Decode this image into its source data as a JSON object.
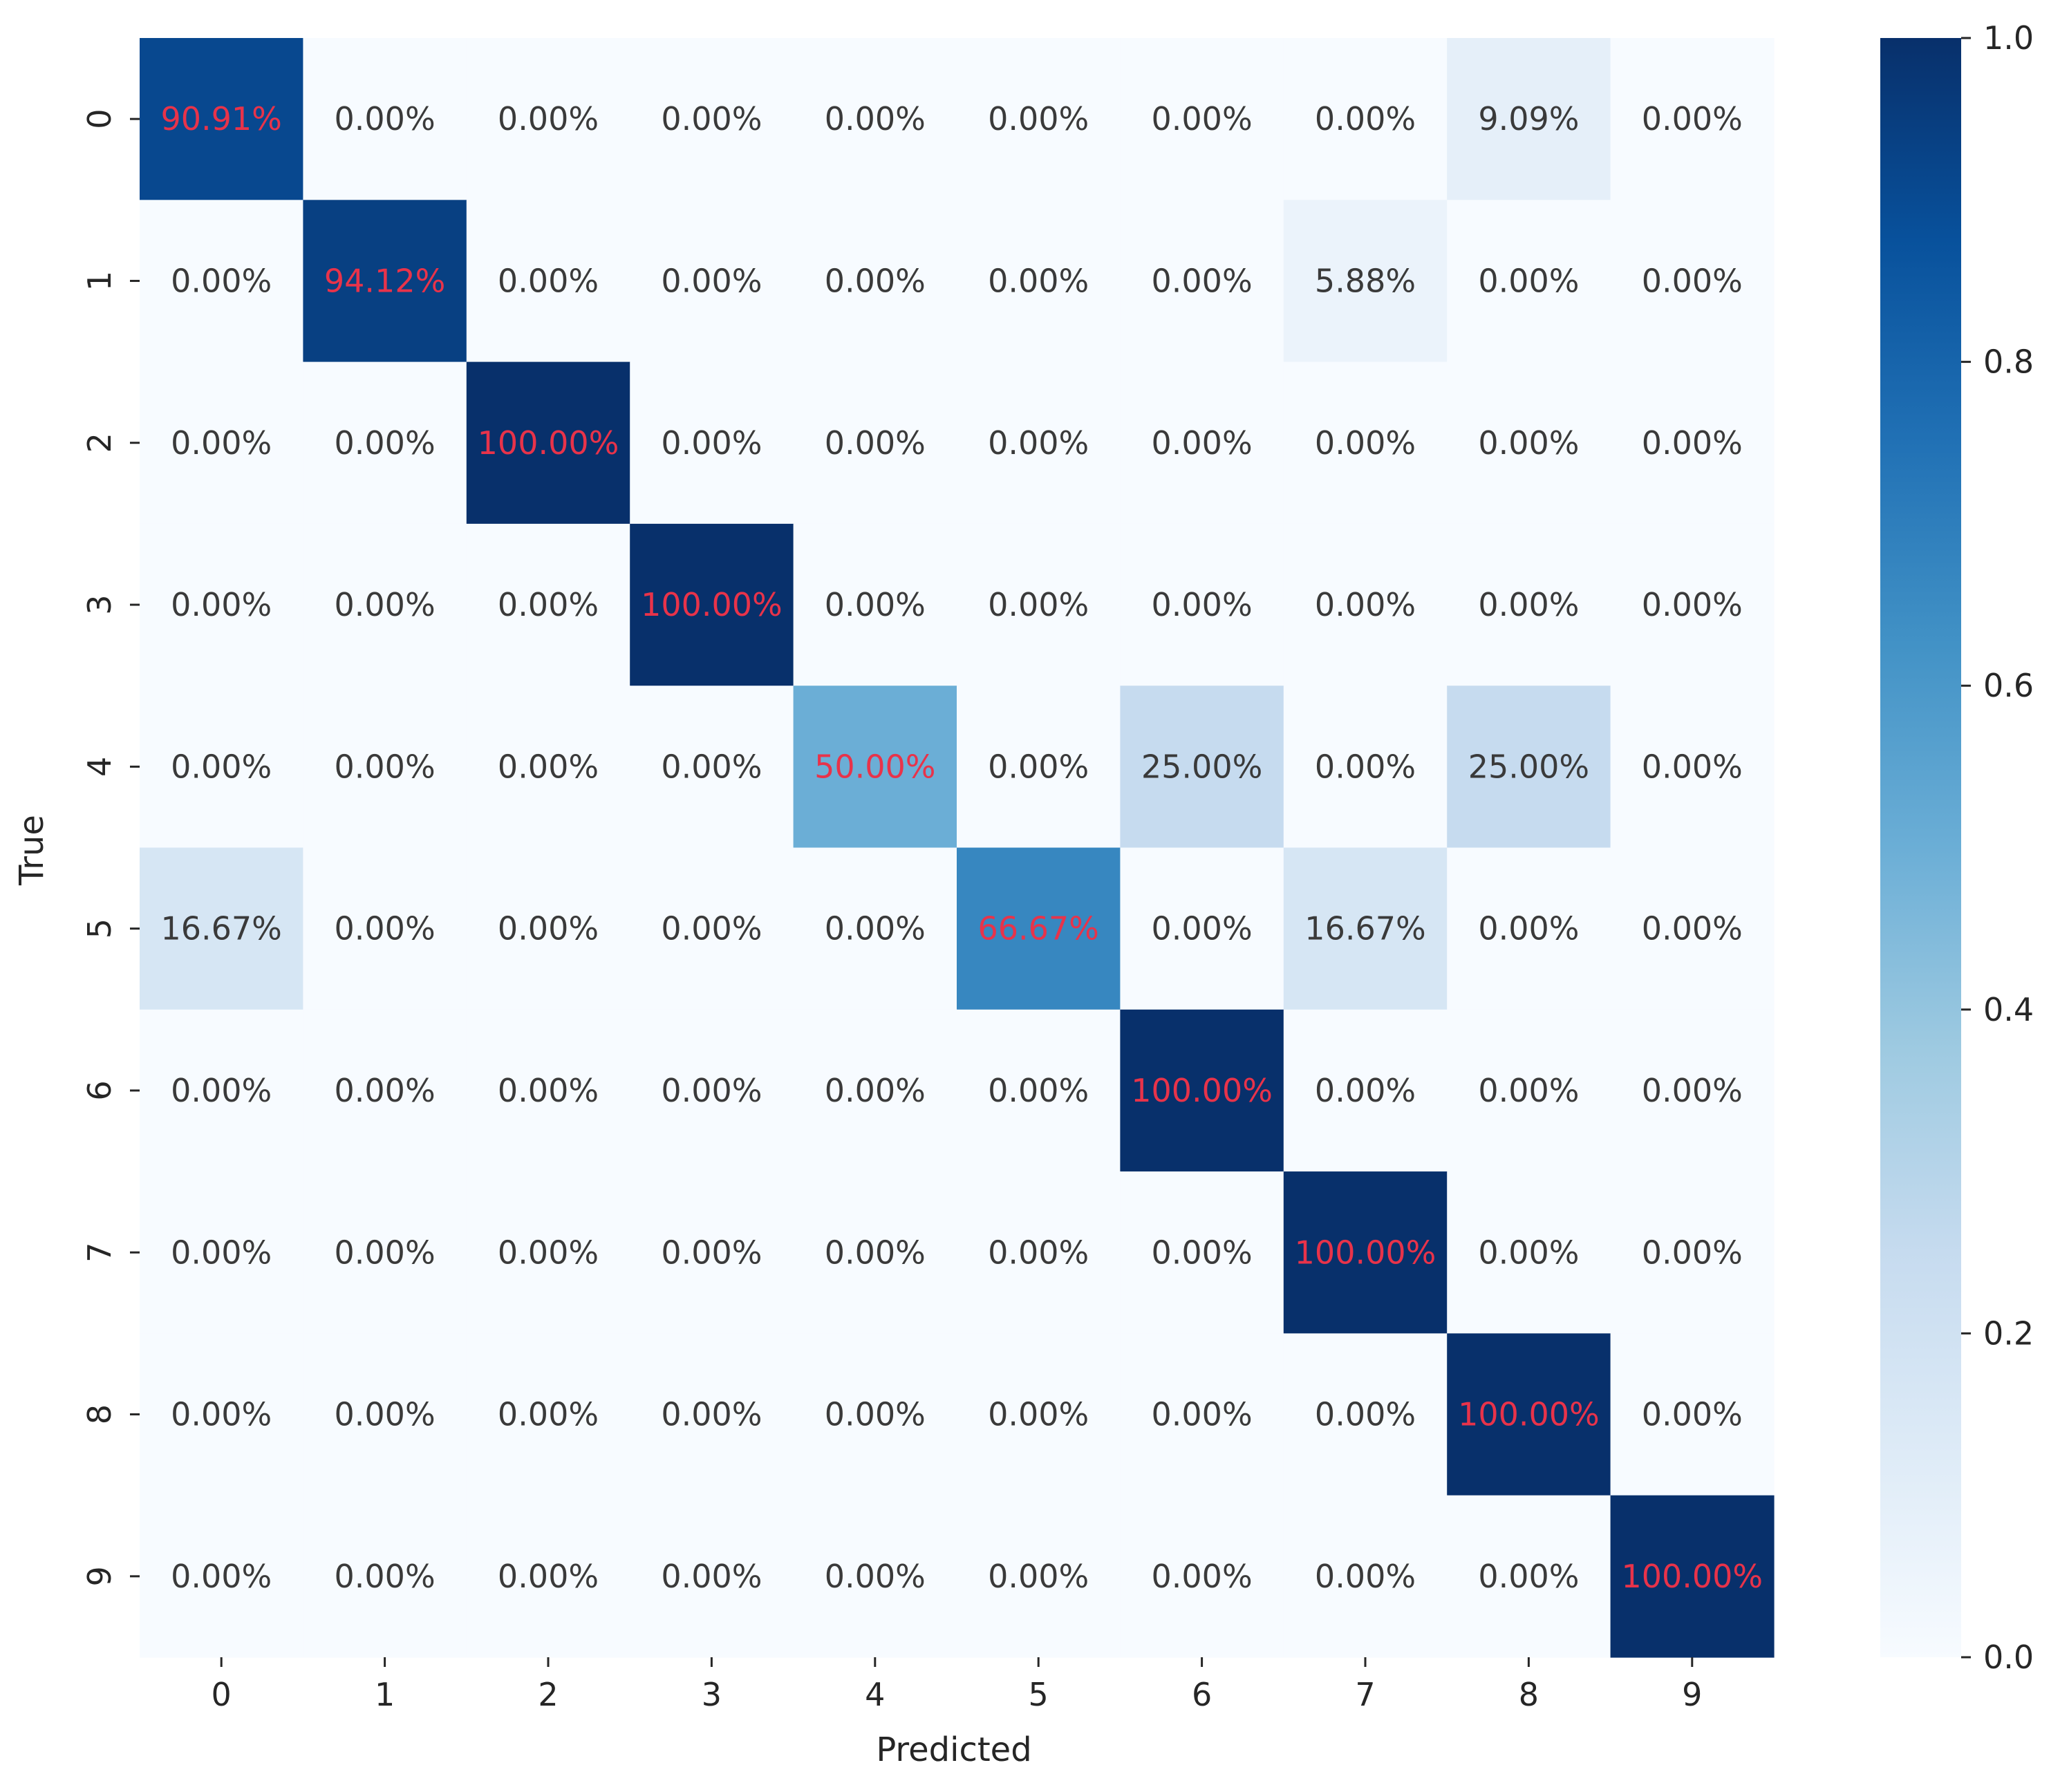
{
  "chart_data": {
    "type": "heatmap",
    "title": "",
    "xlabel": "Predicted",
    "ylabel": "True",
    "x_categories": [
      "0",
      "1",
      "2",
      "3",
      "4",
      "5",
      "6",
      "7",
      "8",
      "9"
    ],
    "y_categories": [
      "0",
      "1",
      "2",
      "3",
      "4",
      "5",
      "6",
      "7",
      "8",
      "9"
    ],
    "values": [
      [
        0.9091,
        0.0,
        0.0,
        0.0,
        0.0,
        0.0,
        0.0,
        0.0,
        0.0909,
        0.0
      ],
      [
        0.0,
        0.9412,
        0.0,
        0.0,
        0.0,
        0.0,
        0.0,
        0.0588,
        0.0,
        0.0
      ],
      [
        0.0,
        0.0,
        1.0,
        0.0,
        0.0,
        0.0,
        0.0,
        0.0,
        0.0,
        0.0
      ],
      [
        0.0,
        0.0,
        0.0,
        1.0,
        0.0,
        0.0,
        0.0,
        0.0,
        0.0,
        0.0
      ],
      [
        0.0,
        0.0,
        0.0,
        0.0,
        0.5,
        0.0,
        0.25,
        0.0,
        0.25,
        0.0
      ],
      [
        0.1667,
        0.0,
        0.0,
        0.0,
        0.0,
        0.6667,
        0.0,
        0.1667,
        0.0,
        0.0
      ],
      [
        0.0,
        0.0,
        0.0,
        0.0,
        0.0,
        0.0,
        1.0,
        0.0,
        0.0,
        0.0
      ],
      [
        0.0,
        0.0,
        0.0,
        0.0,
        0.0,
        0.0,
        0.0,
        1.0,
        0.0,
        0.0
      ],
      [
        0.0,
        0.0,
        0.0,
        0.0,
        0.0,
        0.0,
        0.0,
        0.0,
        1.0,
        0.0
      ],
      [
        0.0,
        0.0,
        0.0,
        0.0,
        0.0,
        0.0,
        0.0,
        0.0,
        0.0,
        1.0
      ]
    ],
    "annotations": [
      [
        "90.91%",
        "0.00%",
        "0.00%",
        "0.00%",
        "0.00%",
        "0.00%",
        "0.00%",
        "0.00%",
        "9.09%",
        "0.00%"
      ],
      [
        "0.00%",
        "94.12%",
        "0.00%",
        "0.00%",
        "0.00%",
        "0.00%",
        "0.00%",
        "5.88%",
        "0.00%",
        "0.00%"
      ],
      [
        "0.00%",
        "0.00%",
        "100.00%",
        "0.00%",
        "0.00%",
        "0.00%",
        "0.00%",
        "0.00%",
        "0.00%",
        "0.00%"
      ],
      [
        "0.00%",
        "0.00%",
        "0.00%",
        "100.00%",
        "0.00%",
        "0.00%",
        "0.00%",
        "0.00%",
        "0.00%",
        "0.00%"
      ],
      [
        "0.00%",
        "0.00%",
        "0.00%",
        "0.00%",
        "50.00%",
        "0.00%",
        "25.00%",
        "0.00%",
        "25.00%",
        "0.00%"
      ],
      [
        "16.67%",
        "0.00%",
        "0.00%",
        "0.00%",
        "0.00%",
        "66.67%",
        "0.00%",
        "16.67%",
        "0.00%",
        "0.00%"
      ],
      [
        "0.00%",
        "0.00%",
        "0.00%",
        "0.00%",
        "0.00%",
        "0.00%",
        "100.00%",
        "0.00%",
        "0.00%",
        "0.00%"
      ],
      [
        "0.00%",
        "0.00%",
        "0.00%",
        "0.00%",
        "0.00%",
        "0.00%",
        "0.00%",
        "100.00%",
        "0.00%",
        "0.00%"
      ],
      [
        "0.00%",
        "0.00%",
        "0.00%",
        "0.00%",
        "0.00%",
        "0.00%",
        "0.00%",
        "0.00%",
        "100.00%",
        "0.00%"
      ],
      [
        "0.00%",
        "0.00%",
        "0.00%",
        "0.00%",
        "0.00%",
        "0.00%",
        "0.00%",
        "0.00%",
        "0.00%",
        "100.00%"
      ]
    ],
    "colorbar": {
      "range": [
        0.0,
        1.0
      ],
      "ticks": [
        0.0,
        0.2,
        0.4,
        0.6,
        0.8,
        1.0
      ],
      "tick_labels": [
        "0.0",
        "0.2",
        "0.4",
        "0.6",
        "0.8",
        "1.0"
      ]
    },
    "colormap": "Blues",
    "colormap_stops": [
      [
        0.0,
        "#f7fbff"
      ],
      [
        0.125,
        "#deebf7"
      ],
      [
        0.25,
        "#c6dbef"
      ],
      [
        0.375,
        "#9ecae1"
      ],
      [
        0.5,
        "#6baed6"
      ],
      [
        0.625,
        "#4292c6"
      ],
      [
        0.75,
        "#2171b5"
      ],
      [
        0.875,
        "#08519c"
      ],
      [
        1.0,
        "#08306b"
      ]
    ],
    "diagonal_text_color": "#e8334a",
    "off_diagonal_text_color": "#3a3a3a",
    "axis_text_color": "#262626"
  }
}
